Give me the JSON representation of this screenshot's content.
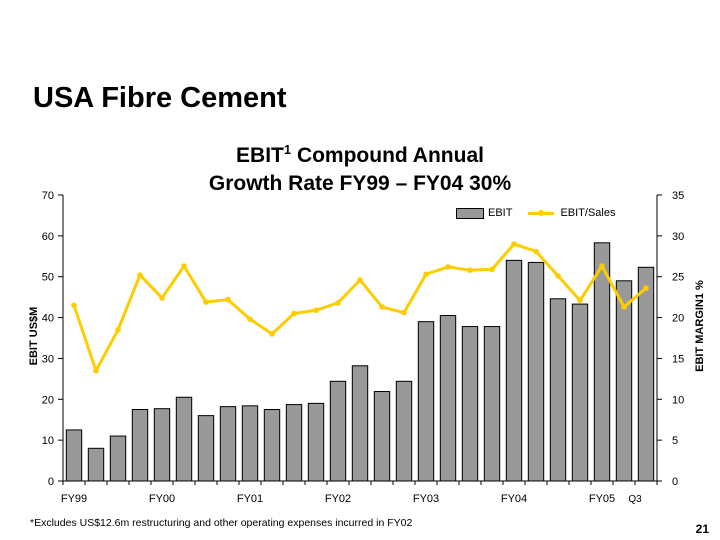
{
  "slide": {
    "title": "USA Fibre Cement",
    "page_number": "21",
    "footnote": "*Excludes US$12.6m restructuring and other operating expenses incurred in FY02"
  },
  "chart_data": {
    "type": "bar",
    "title_line1": "EBIT",
    "title_sup": "1",
    "title_line1_rest": " Compound Annual",
    "title_line2": "Growth Rate FY99 – FY04 30%",
    "ylabel": "EBIT US$M",
    "ylabel_right": "EBIT MARGIN1 %",
    "ylim": [
      0,
      70
    ],
    "y_ticks": [
      0,
      10,
      20,
      30,
      40,
      50,
      60,
      70
    ],
    "ylim_right": [
      0,
      35
    ],
    "y_ticks_right": [
      0,
      5,
      10,
      15,
      20,
      25,
      30,
      35
    ],
    "x_tick_labels": [
      {
        "label": "FY99",
        "index": 0.5
      },
      {
        "label": "FY00",
        "index": 4.5
      },
      {
        "label": "FY01",
        "index": 8.5
      },
      {
        "label": "FY02",
        "index": 12.5
      },
      {
        "label": "FY03",
        "index": 16.5
      },
      {
        "label": "FY04",
        "index": 20.5
      },
      {
        "label": "FY05",
        "index": 24.5
      },
      {
        "label": "Q3",
        "index": 26.0
      }
    ],
    "legend": {
      "placement": "top-right",
      "bar_label": "EBIT",
      "line_label": "EBIT/Sales"
    },
    "series": [
      {
        "name": "EBIT",
        "axis": "left",
        "color": "#999999",
        "values": [
          12.5,
          8.0,
          11.0,
          17.5,
          17.7,
          20.5,
          16.0,
          18.2,
          18.4,
          17.5,
          18.7,
          19.0,
          24.4,
          28.2,
          21.9,
          24.4,
          39.0,
          40.5,
          37.8,
          37.8,
          54.0,
          53.5,
          44.6,
          43.3,
          58.3,
          49.0,
          52.3
        ]
      },
      {
        "name": "EBIT/Sales",
        "axis": "right",
        "color": "#ffcc00",
        "values": [
          21.5,
          13.5,
          18.5,
          25.2,
          22.4,
          26.3,
          21.9,
          22.2,
          19.8,
          18.0,
          20.5,
          20.9,
          21.8,
          24.6,
          21.3,
          20.6,
          25.3,
          26.2,
          25.8,
          25.9,
          29.0,
          28.1,
          25.1,
          22.1,
          26.3,
          21.3,
          23.6
        ]
      }
    ]
  }
}
